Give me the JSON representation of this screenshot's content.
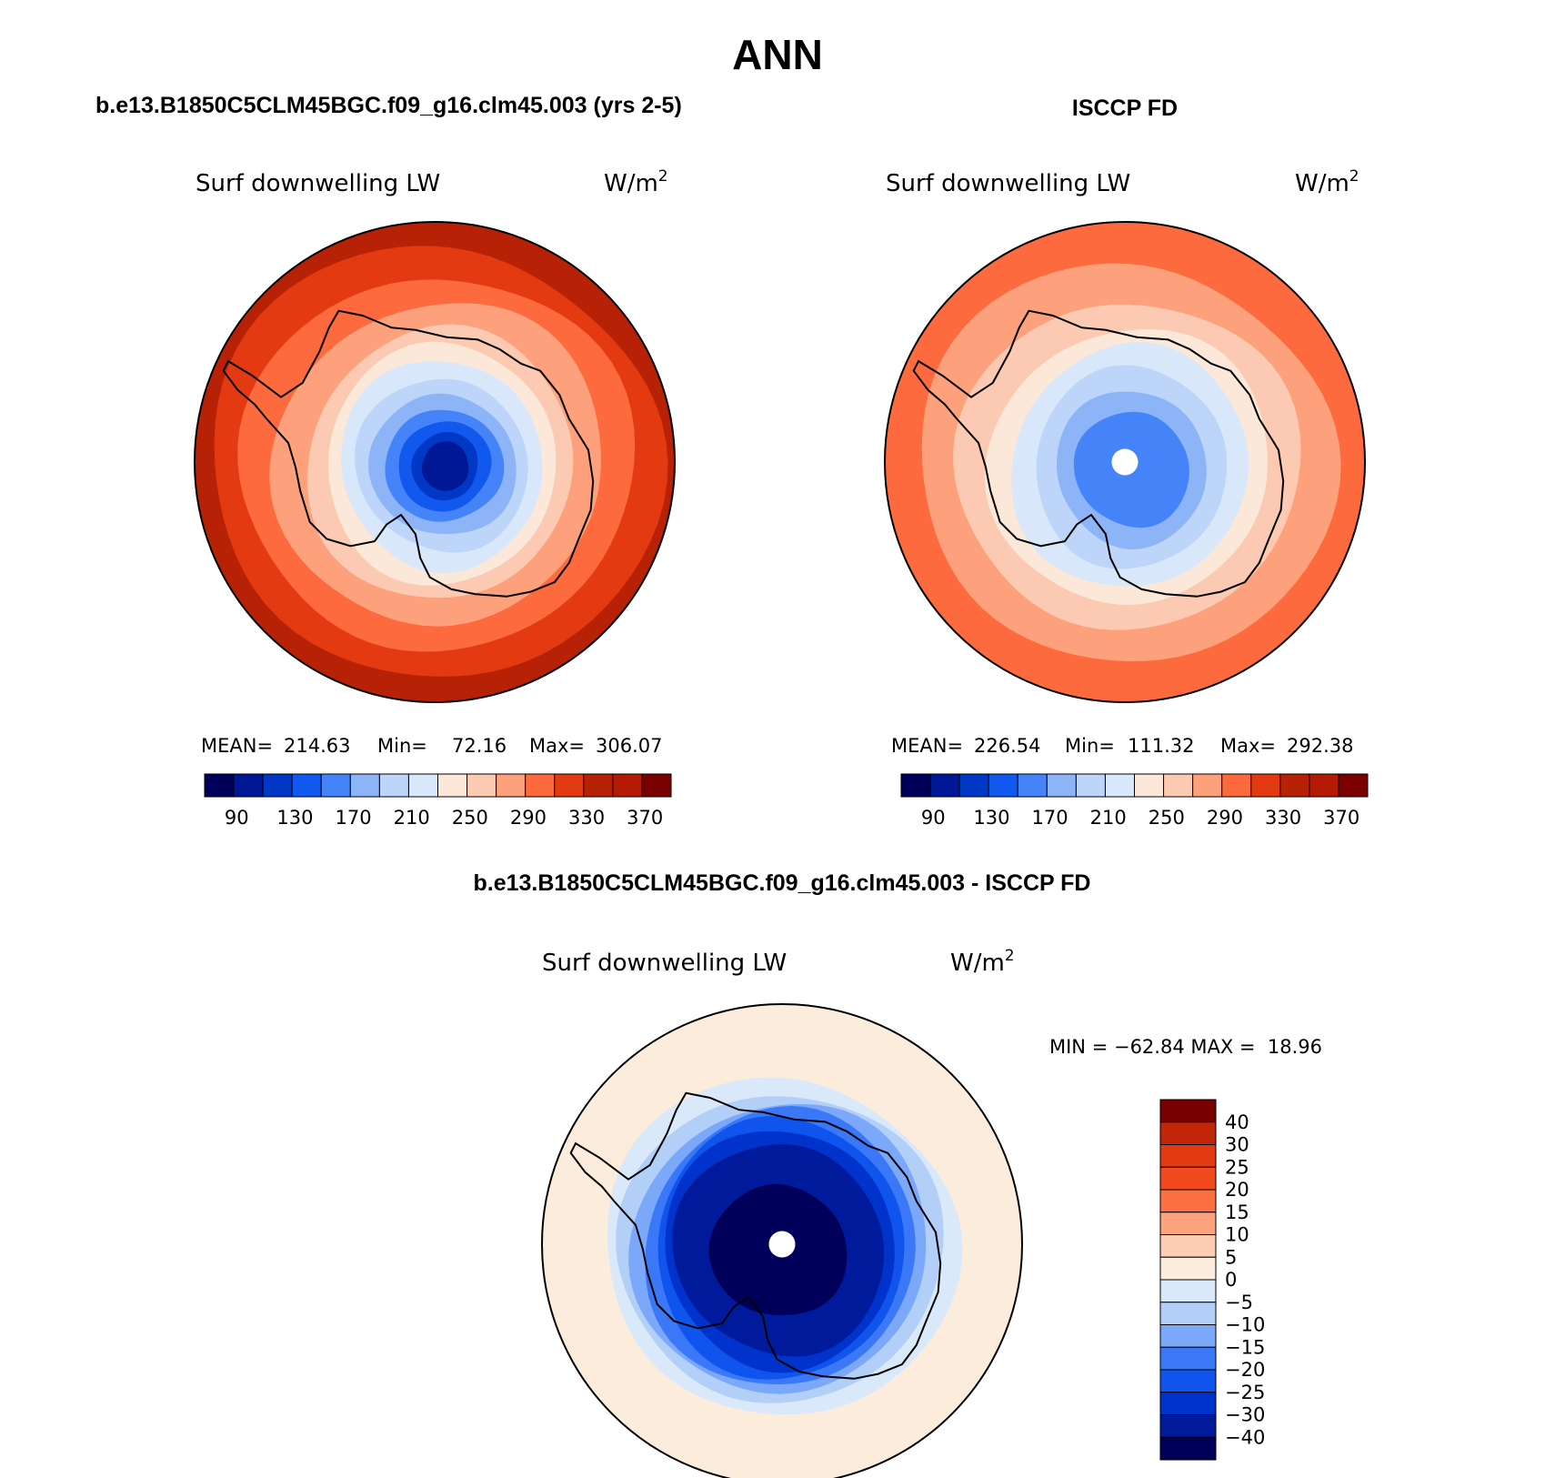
{
  "main_title": "ANN",
  "panels": [
    {
      "id": "model",
      "case_title": "b.e13.B1850C5CLM45BGC.f09_g16.clm45.003 (yrs 2-5)",
      "variable_label": "Surf downwelling LW",
      "units_base": "W/m",
      "units_exp": "2",
      "stats": {
        "mean_label": "MEAN=",
        "mean": "214.63",
        "min_label": "Min=",
        "min": "72.16",
        "max_label": "Max=",
        "max": "306.07"
      },
      "pole_hole": false,
      "bands": [
        {
          "c": 13,
          "r": 1.0
        },
        {
          "c": 12,
          "r": 0.92
        },
        {
          "c": 11,
          "r": 0.8
        },
        {
          "c": 10,
          "r": 0.68
        },
        {
          "c": 9,
          "r": 0.56
        },
        {
          "c": 8,
          "r": 0.49
        },
        {
          "c": 7,
          "r": 0.43
        },
        {
          "c": 6,
          "r": 0.36
        },
        {
          "c": 5,
          "r": 0.3
        },
        {
          "c": 4,
          "r": 0.24
        },
        {
          "c": 3,
          "r": 0.19
        },
        {
          "c": 2,
          "r": 0.14
        },
        {
          "c": 1,
          "r": 0.1
        }
      ]
    },
    {
      "id": "obs",
      "case_title": "ISCCP FD",
      "variable_label": "Surf downwelling LW",
      "units_base": "W/m",
      "units_exp": "2",
      "stats": {
        "mean_label": "MEAN=",
        "mean": "226.54",
        "min_label": "Min=",
        "min": "111.32",
        "max_label": "Max=",
        "max": "292.38"
      },
      "pole_hole": true,
      "bands": [
        {
          "c": 11,
          "r": 1.0
        },
        {
          "c": 10,
          "r": 0.85
        },
        {
          "c": 9,
          "r": 0.7
        },
        {
          "c": 8,
          "r": 0.58
        },
        {
          "c": 7,
          "r": 0.5
        },
        {
          "c": 6,
          "r": 0.41
        },
        {
          "c": 5,
          "r": 0.32
        },
        {
          "c": 4,
          "r": 0.24
        }
      ]
    }
  ],
  "abs_colorbar": {
    "colors": [
      "#00005a",
      "#001796",
      "#0038c6",
      "#1058ee",
      "#4584f8",
      "#8eb4f8",
      "#bcd5f8",
      "#d8e8fa",
      "#fce8d8",
      "#fccab2",
      "#fca17c",
      "#fc6a3e",
      "#e33a12",
      "#b72206",
      "#b41a04",
      "#7a0000"
    ],
    "tick_labels": [
      "90",
      "130",
      "170",
      "210",
      "250",
      "290",
      "330",
      "370"
    ]
  },
  "diff_panel": {
    "case_title": "b.e13.B1850C5CLM45BGC.f09_g16.clm45.003 - ISCCP FD",
    "variable_label": "Surf downwelling LW",
    "units_base": "W/m",
    "units_exp": "2",
    "minmax_text": "MIN = −62.84 MAX =  18.96",
    "pole_hole": true,
    "bands": [
      {
        "c": 8,
        "r": 1.0
      },
      {
        "c": 7,
        "r": 0.72
      },
      {
        "c": 6,
        "r": 0.66
      },
      {
        "c": 5,
        "r": 0.61
      },
      {
        "c": 4,
        "r": 0.57
      },
      {
        "c": 3,
        "r": 0.53
      },
      {
        "c": 2,
        "r": 0.49
      },
      {
        "c": 1,
        "r": 0.44
      },
      {
        "c": 0,
        "r": 0.28
      }
    ],
    "colors": [
      "#00005a",
      "#001a9c",
      "#0033cc",
      "#1054ee",
      "#3a78f8",
      "#7ba8f8",
      "#b2cff8",
      "#d9e9fa",
      "#fcecdc",
      "#fccdb2",
      "#fca37e",
      "#fb6f40",
      "#f24a1c",
      "#e33a12",
      "#c12608",
      "#7a0000"
    ],
    "tick_labels": [
      "40",
      "30",
      "25",
      "20",
      "15",
      "10",
      "5",
      "0",
      "−5",
      "−10",
      "−15",
      "−20",
      "−25",
      "−30",
      "−40"
    ]
  }
}
